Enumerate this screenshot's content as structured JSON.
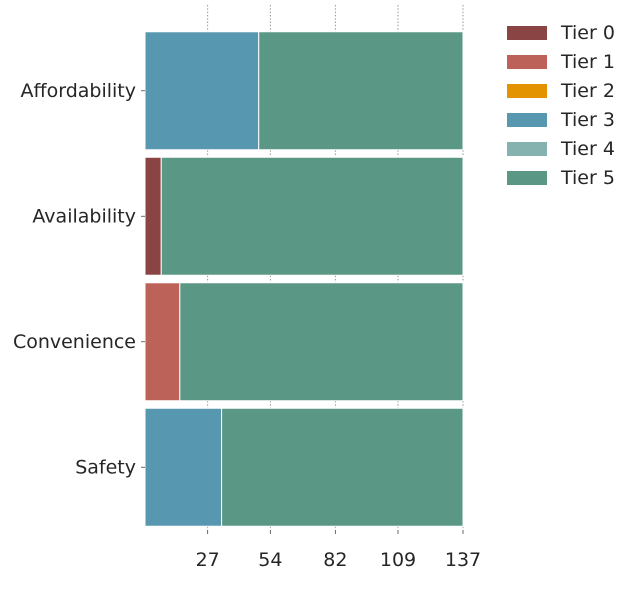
{
  "chart_data": {
    "type": "bar",
    "orientation": "horizontal",
    "stacked": true,
    "categories": [
      "Affordability",
      "Availability",
      "Convenience",
      "Safety"
    ],
    "x_ticks": [
      27,
      54,
      82,
      109,
      137
    ],
    "xlim": [
      0,
      137
    ],
    "grid": "vertical dotted",
    "legend_position": "top-right, outside plot",
    "series": [
      {
        "name": "Tier 0",
        "color": "#8b4444",
        "values": [
          0,
          7,
          0,
          0
        ]
      },
      {
        "name": "Tier 1",
        "color": "#bd6259",
        "values": [
          0,
          0,
          15,
          0
        ]
      },
      {
        "name": "Tier 2",
        "color": "#e39300",
        "values": [
          0,
          0,
          0,
          0
        ]
      },
      {
        "name": "Tier 3",
        "color": "#5798b0",
        "values": [
          49,
          0,
          0,
          33
        ]
      },
      {
        "name": "Tier 4",
        "color": "#85b1ae",
        "values": [
          0,
          0,
          0,
          0
        ]
      },
      {
        "name": "Tier 5",
        "color": "#5a9785",
        "values": [
          88,
          130,
          122,
          104
        ]
      }
    ]
  }
}
